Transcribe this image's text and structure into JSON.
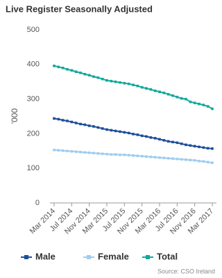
{
  "chart_data": {
    "type": "line",
    "title": "Live Register Seasonally Adjusted",
    "y_label": "'000",
    "source": "Source: CSO Ireland",
    "categories": [
      "Mar 2014",
      null,
      null,
      null,
      "Jul 2014",
      null,
      null,
      null,
      "Nov 2014",
      null,
      null,
      null,
      "Mar 2015",
      null,
      null,
      null,
      "Jul 2015",
      null,
      null,
      null,
      "Nov 2015",
      null,
      null,
      null,
      "Mar 2016",
      null,
      null,
      null,
      "Jul 2016",
      null,
      null,
      null,
      "Nov 2016",
      null,
      null,
      null,
      "Mar 2017"
    ],
    "series": [
      {
        "name": "Male",
        "color": "#1d4f9c",
        "values": [
          244,
          242,
          239,
          237,
          234,
          231,
          228,
          226,
          223,
          221,
          218,
          215,
          212,
          210,
          208,
          206,
          204,
          202,
          199,
          197,
          194,
          192,
          189,
          187,
          184,
          181,
          178,
          176,
          174,
          171,
          168,
          166,
          164,
          162,
          160,
          158,
          157
        ]
      },
      {
        "name": "Female",
        "color": "#9fcdf0",
        "values": [
          153,
          152,
          151,
          150,
          149,
          148,
          147,
          146,
          145,
          144,
          143,
          142,
          141,
          140,
          140,
          139,
          139,
          138,
          137,
          136,
          135,
          134,
          133,
          132,
          131,
          130,
          129,
          128,
          127,
          126,
          125,
          124,
          123,
          121,
          120,
          118,
          116
        ]
      },
      {
        "name": "Total",
        "color": "#13a89b",
        "values": [
          396,
          393,
          390,
          386,
          383,
          379,
          376,
          372,
          369,
          365,
          362,
          358,
          354,
          352,
          350,
          348,
          346,
          344,
          341,
          338,
          334,
          331,
          328,
          324,
          321,
          318,
          314,
          310,
          306,
          302,
          300,
          292,
          289,
          286,
          283,
          279,
          272
        ]
      }
    ],
    "ylim": [
      0,
      500
    ],
    "yticks": [
      0,
      100,
      200,
      300,
      400,
      500
    ],
    "grid": false,
    "legend": "bottom"
  }
}
